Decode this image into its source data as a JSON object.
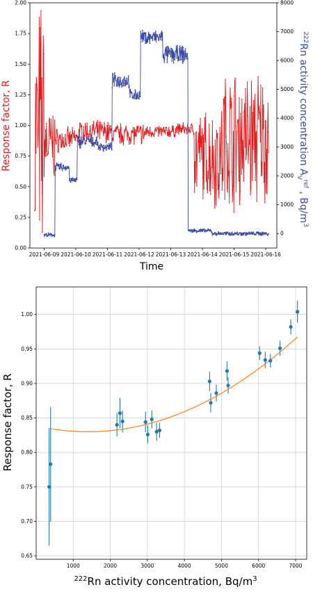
{
  "chart_data": [
    {
      "type": "line",
      "xlabel": "Time",
      "ylabel_left": "Response factor, R",
      "ylabel_right": "222Rn activity concentration A_V^ref , Bq/m3",
      "ylabel_right_parts": {
        "sup1": "222",
        "main": "Rn activity concentration A",
        "sub": "V",
        "sup2": "ref",
        "tail": " , Bq/m",
        "sup3": "3"
      },
      "ylim_left": [
        0.0,
        2.0
      ],
      "ylim_right": [
        -500,
        8000
      ],
      "yticks_left": [
        "0.00",
        "0.25",
        "0.50",
        "0.75",
        "1.00",
        "1.25",
        "1.50",
        "1.75",
        "2.00"
      ],
      "yticks_right": [
        "0",
        "1000",
        "2000",
        "3000",
        "4000",
        "5000",
        "6000",
        "7000",
        "8000"
      ],
      "xticks": [
        "2021-06-09",
        "2021-06-10",
        "2021-06-11",
        "2021-06-12",
        "2021-06-13",
        "2021-06-14",
        "2021-06-15",
        "2021-06-16"
      ],
      "grid": false,
      "series": [
        {
          "axis": "left",
          "color": "#e41a1c",
          "levels": [
            [
              8.7,
              9.0,
              0.9,
              0.9
            ],
            [
              9.0,
              9.35,
              0.85,
              0.25
            ],
            [
              9.35,
              9.85,
              0.88,
              0.08
            ],
            [
              9.85,
              10.1,
              0.9,
              0.06
            ],
            [
              10.1,
              11.1,
              0.95,
              0.07
            ],
            [
              11.1,
              12.2,
              0.93,
              0.07
            ],
            [
              12.2,
              13.15,
              0.95,
              0.04
            ],
            [
              13.15,
              13.75,
              0.97,
              0.04
            ],
            [
              13.75,
              14.3,
              0.75,
              0.3
            ],
            [
              14.3,
              14.65,
              0.75,
              0.35
            ],
            [
              14.65,
              16.1,
              0.9,
              0.45
            ]
          ]
        },
        {
          "axis": "right",
          "color": "#3a4aa8",
          "levels": [
            [
              9.0,
              9.35,
              -50,
              50
            ],
            [
              9.35,
              9.8,
              2300,
              120
            ],
            [
              9.8,
              10.05,
              1850,
              80
            ],
            [
              10.05,
              10.7,
              3200,
              180
            ],
            [
              10.7,
              11.15,
              3000,
              120
            ],
            [
              11.15,
              11.7,
              5300,
              200
            ],
            [
              11.7,
              12.05,
              4800,
              150
            ],
            [
              12.05,
              12.75,
              6800,
              200
            ],
            [
              12.75,
              13.55,
              6200,
              250
            ],
            [
              13.55,
              14.3,
              100,
              50
            ],
            [
              14.3,
              16.1,
              0,
              50
            ]
          ]
        }
      ]
    },
    {
      "type": "scatter",
      "xlabel": "222Rn activity concentration, Bq/m3",
      "xlabel_parts": {
        "sup": "222",
        "main": "Rn activity concentration, Bq/m",
        "sup2": "3"
      },
      "ylabel": "Response factor, R",
      "xlim": [
        0,
        7300
      ],
      "ylim": [
        0.645,
        1.04
      ],
      "xticks": [
        "1000",
        "2000",
        "3000",
        "4000",
        "5000",
        "6000",
        "7000"
      ],
      "yticks": [
        "0.65",
        "0.70",
        "0.75",
        "0.80",
        "0.85",
        "0.90",
        "0.95",
        "1.00"
      ],
      "grid": true,
      "marker_color": "#1f77b4",
      "fit_color": "#ff7f0e",
      "points": [
        {
          "x": 350,
          "y": 0.75,
          "err": 0.085
        },
        {
          "x": 390,
          "y": 0.783,
          "err": 0.083
        },
        {
          "x": 2180,
          "y": 0.84,
          "err": 0.017
        },
        {
          "x": 2260,
          "y": 0.857,
          "err": 0.022
        },
        {
          "x": 2330,
          "y": 0.845,
          "err": 0.016
        },
        {
          "x": 2950,
          "y": 0.844,
          "err": 0.015
        },
        {
          "x": 3010,
          "y": 0.826,
          "err": 0.013
        },
        {
          "x": 3120,
          "y": 0.848,
          "err": 0.013
        },
        {
          "x": 3250,
          "y": 0.83,
          "err": 0.013
        },
        {
          "x": 3330,
          "y": 0.832,
          "err": 0.011
        },
        {
          "x": 4680,
          "y": 0.903,
          "err": 0.014
        },
        {
          "x": 4710,
          "y": 0.872,
          "err": 0.014
        },
        {
          "x": 4860,
          "y": 0.886,
          "err": 0.012
        },
        {
          "x": 5150,
          "y": 0.918,
          "err": 0.014
        },
        {
          "x": 5180,
          "y": 0.897,
          "err": 0.012
        },
        {
          "x": 6030,
          "y": 0.944,
          "err": 0.01
        },
        {
          "x": 6180,
          "y": 0.934,
          "err": 0.012
        },
        {
          "x": 6320,
          "y": 0.933,
          "err": 0.01
        },
        {
          "x": 6580,
          "y": 0.951,
          "err": 0.011
        },
        {
          "x": 6870,
          "y": 0.982,
          "err": 0.011
        },
        {
          "x": 7050,
          "y": 1.004,
          "err": 0.016
        }
      ],
      "fit": {
        "x_range": [
          350,
          7050
        ],
        "coef": [
          0.83835,
          -1.2e-05,
          4.3e-09
        ]
      }
    }
  ]
}
